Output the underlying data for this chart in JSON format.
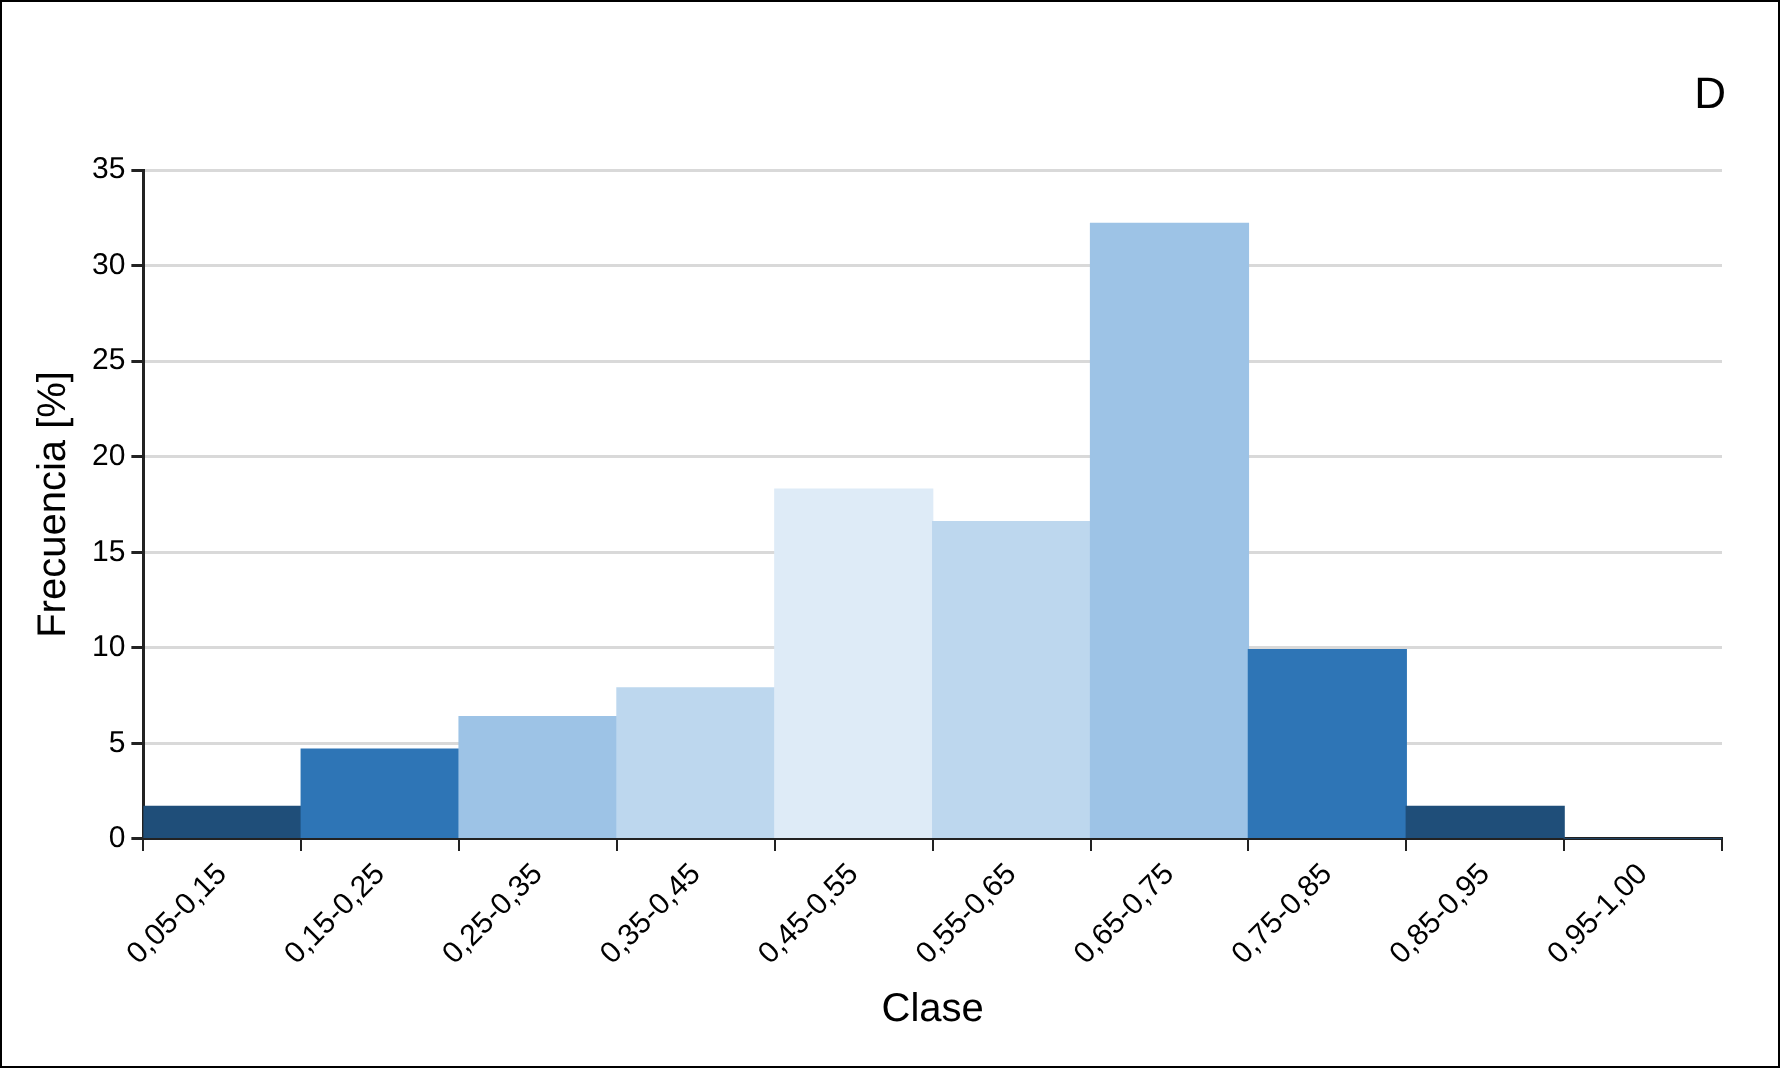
{
  "chart_data": {
    "type": "bar",
    "xlabel": "Clase",
    "ylabel": "Frecuencia [%]",
    "categories": [
      "0,05-0,15",
      "0,15-0,25",
      "0,25-0,35",
      "0,35-0,45",
      "0,45-0,55",
      "0,55-0,65",
      "0,65-0,75",
      "0,75-0,85",
      "0,85-0,95",
      "0,95-1,00"
    ],
    "values": [
      1.7,
      4.7,
      6.4,
      7.9,
      18.3,
      16.6,
      32.2,
      9.9,
      1.7,
      0
    ],
    "colors": [
      "#1f4e79",
      "#2e75b6",
      "#9dc3e6",
      "#bdd7ee",
      "#deebf7",
      "#bdd7ee",
      "#9dc3e6",
      "#2e75b6",
      "#1f4e79",
      "#1f4e79"
    ],
    "ylim": [
      0,
      35
    ],
    "yticks": [
      0,
      5,
      10,
      15,
      20,
      25,
      30,
      35
    ],
    "grid": "y",
    "legend": false,
    "annotations": [
      "D"
    ]
  }
}
